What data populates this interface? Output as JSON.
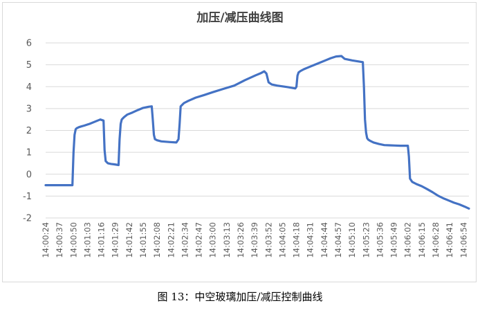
{
  "chart_data": {
    "type": "line",
    "title": "加压/减压曲线图",
    "xlabel": "",
    "ylabel": "",
    "ylim": [
      -2,
      6
    ],
    "yticks": [
      -2,
      -1,
      0,
      1,
      2,
      3,
      4,
      5,
      6
    ],
    "grid": "horizontal",
    "legend": "none",
    "line_color": "#4472C4",
    "grid_color": "#d9d9d9",
    "x_tick_labels": [
      "14:00:24",
      "14:00:37",
      "14:00:50",
      "14:01:03",
      "14:01:16",
      "14:01:29",
      "14:01:42",
      "14:01:55",
      "14:02:08",
      "14:02:21",
      "14:02:34",
      "14:02:47",
      "14:03:00",
      "14:03:13",
      "14:03:26",
      "14:03:39",
      "14:03:52",
      "14:04:05",
      "14:04:18",
      "14:04:31",
      "14:04:44",
      "14:04:57",
      "14:05:10",
      "14:05:23",
      "14:05:36",
      "14:05:49",
      "14:06:02",
      "14:06:15",
      "14:06:28",
      "14:06:41",
      "14:06:54"
    ],
    "x_range": [
      "14:00:24",
      "14:06:59"
    ],
    "series": [
      {
        "x": [
          "14:00:24",
          "14:00:30",
          "14:00:36",
          "14:00:48",
          "14:00:49",
          "14:00:50",
          "14:00:51",
          "14:00:52",
          "14:00:53",
          "14:00:55",
          "14:00:57",
          "14:01:00",
          "14:01:05",
          "14:01:10",
          "14:01:15",
          "14:01:18",
          "14:01:19",
          "14:01:20",
          "14:01:22",
          "14:01:25",
          "14:01:28",
          "14:01:32",
          "14:01:33",
          "14:01:34",
          "14:01:35",
          "14:01:37",
          "14:01:40",
          "14:01:45",
          "14:01:50",
          "14:01:55",
          "14:02:00",
          "14:02:03",
          "14:02:04",
          "14:02:05",
          "14:02:06",
          "14:02:08",
          "14:02:12",
          "14:02:20",
          "14:02:26",
          "14:02:28",
          "14:02:29",
          "14:02:30",
          "14:02:31",
          "14:02:33",
          "14:02:37",
          "14:02:44",
          "14:02:52",
          "14:03:00",
          "14:03:10",
          "14:03:20",
          "14:03:30",
          "14:03:40",
          "14:03:45",
          "14:03:48",
          "14:03:50",
          "14:03:52",
          "14:03:55",
          "14:04:00",
          "14:04:10",
          "14:04:17",
          "14:04:18",
          "14:04:19",
          "14:04:20",
          "14:04:22",
          "14:04:25",
          "14:04:30",
          "14:04:35",
          "14:04:40",
          "14:04:45",
          "14:04:50",
          "14:04:55",
          "14:05:00",
          "14:05:03",
          "14:05:10",
          "14:05:20",
          "14:05:21",
          "14:05:22",
          "14:05:23",
          "14:05:24",
          "14:05:25",
          "14:05:27",
          "14:05:30",
          "14:05:35",
          "14:05:40",
          "14:05:45",
          "14:05:50",
          "14:05:55",
          "14:06:02",
          "14:06:03",
          "14:06:04",
          "14:06:06",
          "14:06:10",
          "14:06:15",
          "14:06:20",
          "14:06:25",
          "14:06:30",
          "14:06:35",
          "14:06:40",
          "14:06:45",
          "14:06:50",
          "14:06:55",
          "14:06:59"
        ],
        "y": [
          -0.5,
          -0.5,
          -0.5,
          -0.5,
          -0.5,
          1.0,
          1.8,
          2.05,
          2.1,
          2.15,
          2.18,
          2.22,
          2.3,
          2.4,
          2.5,
          2.45,
          1.1,
          0.6,
          0.5,
          0.47,
          0.45,
          0.42,
          1.6,
          2.3,
          2.5,
          2.6,
          2.72,
          2.82,
          2.93,
          3.03,
          3.08,
          3.1,
          2.5,
          1.8,
          1.6,
          1.55,
          1.5,
          1.47,
          1.45,
          1.6,
          2.3,
          3.1,
          3.15,
          3.25,
          3.35,
          3.5,
          3.62,
          3.75,
          3.9,
          4.05,
          4.3,
          4.52,
          4.62,
          4.7,
          4.6,
          4.2,
          4.1,
          4.05,
          3.98,
          3.92,
          4.0,
          4.5,
          4.65,
          4.72,
          4.8,
          4.9,
          5.0,
          5.1,
          5.2,
          5.3,
          5.38,
          5.4,
          5.27,
          5.2,
          5.12,
          4.0,
          2.5,
          1.9,
          1.65,
          1.58,
          1.52,
          1.45,
          1.38,
          1.33,
          1.32,
          1.31,
          1.3,
          1.3,
          0.8,
          -0.2,
          -0.35,
          -0.45,
          -0.55,
          -0.68,
          -0.82,
          -0.98,
          -1.1,
          -1.2,
          -1.3,
          -1.38,
          -1.48,
          -1.57
        ]
      }
    ]
  },
  "caption": "图 13：中空玻璃加压/减压控制曲线"
}
